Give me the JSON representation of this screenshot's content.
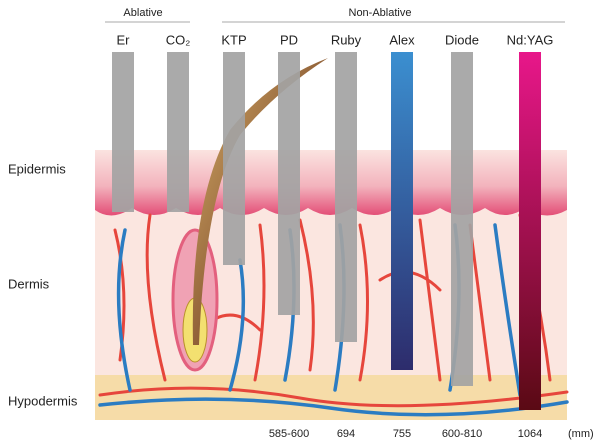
{
  "groups": [
    {
      "label": "Ablative"
    },
    {
      "label": "Non-Ablative"
    }
  ],
  "lasers": [
    {
      "name": "Er"
    },
    {
      "name": "CO₂"
    },
    {
      "name": "KTP"
    },
    {
      "name": "PD",
      "wavelength": "585-600"
    },
    {
      "name": "Ruby",
      "wavelength": "694"
    },
    {
      "name": "Alex",
      "wavelength": "755"
    },
    {
      "name": "Diode",
      "wavelength": "600-810"
    },
    {
      "name": "Nd:YAG",
      "wavelength": "1064"
    }
  ],
  "layers": [
    "Epidermis",
    "Dermis",
    "Hypodermis"
  ],
  "unit": "(mm)"
}
